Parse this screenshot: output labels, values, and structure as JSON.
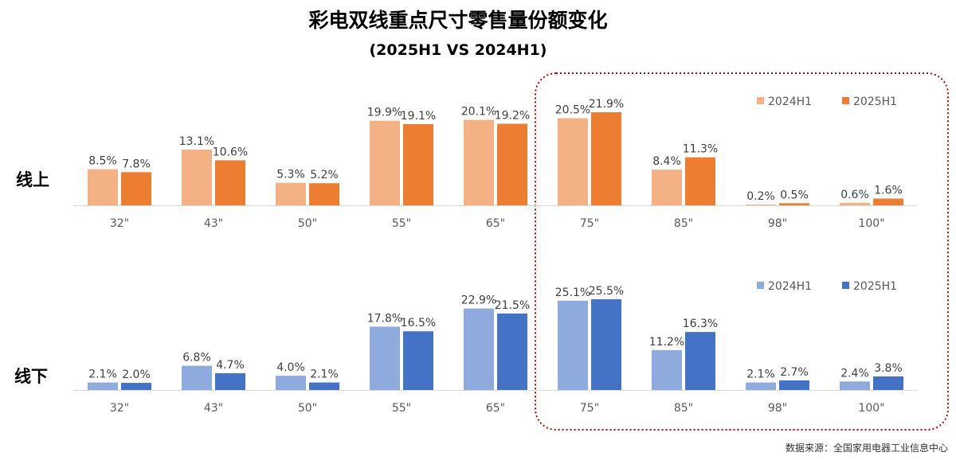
{
  "title": "彩电双线重点尺寸零售量份额变化",
  "subtitle": "(2025H1 VS 2024H1)",
  "source": "数据来源：全国家用电器工业信息中心",
  "highlight_color": "#C00000",
  "chart_data": [
    {
      "type": "bar",
      "row_label": "线上",
      "categories": [
        "32\"",
        "43\"",
        "50\"",
        "55\"",
        "65\"",
        "75\"",
        "85\"",
        "98\"",
        "100\""
      ],
      "series": [
        {
          "name": "2024H1",
          "color": "#F4B183",
          "values": [
            8.5,
            13.1,
            5.3,
            19.9,
            20.1,
            20.5,
            8.4,
            0.2,
            0.6
          ],
          "labels": [
            "8.5%",
            "13.1%",
            "5.3%",
            "19.9%",
            "20.1%",
            "20.5%",
            "8.4%",
            "0.2%",
            "0.6%"
          ]
        },
        {
          "name": "2025H1",
          "color": "#ED7D31",
          "values": [
            7.8,
            10.6,
            5.2,
            19.1,
            19.2,
            21.9,
            11.3,
            0.5,
            1.6
          ],
          "labels": [
            "7.8%",
            "10.6%",
            "5.2%",
            "19.1%",
            "19.2%",
            "21.9%",
            "11.3%",
            "0.5%",
            "1.6%"
          ]
        }
      ],
      "legend": "top-right",
      "grid": false
    },
    {
      "type": "bar",
      "row_label": "线下",
      "categories": [
        "32\"",
        "43\"",
        "50\"",
        "55\"",
        "65\"",
        "75\"",
        "85\"",
        "98\"",
        "100\""
      ],
      "series": [
        {
          "name": "2024H1",
          "color": "#8FAADC",
          "values": [
            2.1,
            6.8,
            4.0,
            17.8,
            22.9,
            25.1,
            11.2,
            2.1,
            2.4
          ],
          "labels": [
            "2.1%",
            "6.8%",
            "4.0%",
            "17.8%",
            "22.9%",
            "25.1%",
            "11.2%",
            "2.1%",
            "2.4%"
          ]
        },
        {
          "name": "2025H1",
          "color": "#4472C4",
          "values": [
            2.0,
            4.7,
            2.1,
            16.5,
            21.5,
            25.5,
            16.3,
            2.7,
            3.8
          ],
          "labels": [
            "2.0%",
            "4.7%",
            "2.1%",
            "16.5%",
            "21.5%",
            "25.5%",
            "16.3%",
            "2.7%",
            "3.8%"
          ]
        }
      ],
      "legend": "top-right",
      "grid": false
    }
  ]
}
